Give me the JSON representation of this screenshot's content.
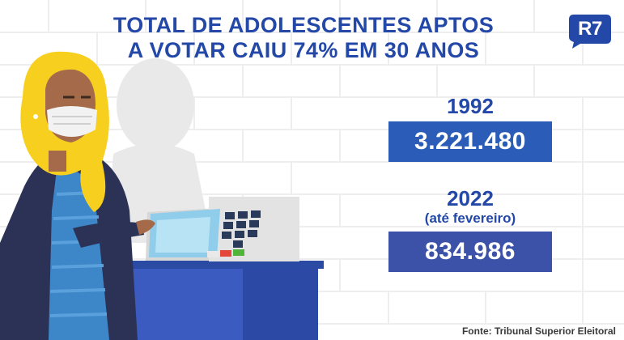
{
  "headline": {
    "line1": "TOTAL DE ADOLESCENTES APTOS",
    "line2": "A VOTAR CAIU 74% EM 30 ANOS"
  },
  "logo": {
    "text": "R7",
    "color": "#2348a7"
  },
  "stats": [
    {
      "year": "1992",
      "value": "3.221.480"
    },
    {
      "year": "2022",
      "note": "(até fevereiro)",
      "value": "834.986"
    }
  ],
  "source": "Fonte: Tribunal Superior Eleitoral",
  "colors": {
    "accent": "#2348a7",
    "box_1992": "#2a5cb8",
    "box_2022": "#3c52a8"
  },
  "icons": [
    "r7-logo-icon",
    "woman-voter-illustration",
    "voting-machine-icon",
    "brick-wall-background"
  ]
}
